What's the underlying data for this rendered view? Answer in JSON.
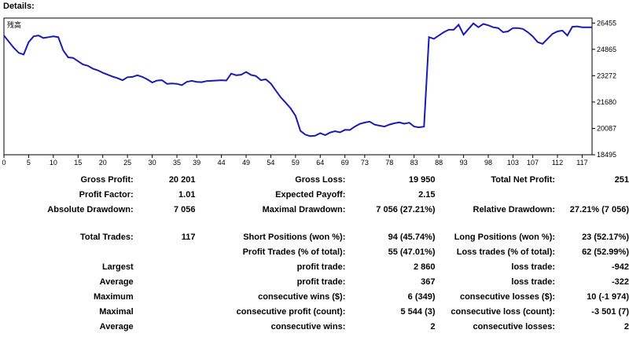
{
  "section_title": "Details:",
  "chart_data": {
    "type": "line",
    "legend_label": "残高",
    "ylim": [
      18495,
      26755
    ],
    "yticks": [
      "26455",
      "24865",
      "23272",
      "21680",
      "20087",
      "18495"
    ],
    "ytick_values": [
      26455,
      24865,
      23272,
      21680,
      20087,
      18495
    ],
    "xticks": [
      "0",
      "5",
      "10",
      "15",
      "20",
      "25",
      "30",
      "35",
      "39",
      "44",
      "49",
      "54",
      "59",
      "64",
      "69",
      "73",
      "78",
      "83",
      "88",
      "93",
      "98",
      "103",
      "107",
      "112",
      "117"
    ],
    "xlim": [
      0,
      119
    ],
    "x": [
      0,
      2,
      3,
      4,
      5,
      6,
      7,
      8,
      9,
      10,
      11,
      12,
      13,
      14,
      15,
      16,
      17,
      18,
      19,
      20,
      21,
      22,
      23,
      24,
      25,
      26,
      27,
      28,
      29,
      30,
      31,
      32,
      33,
      34,
      35,
      36,
      37,
      38,
      39,
      40,
      41,
      42,
      43,
      44,
      45,
      46,
      47,
      48,
      49,
      50,
      51,
      52,
      53,
      54,
      55,
      56,
      57,
      58,
      59,
      60,
      61,
      62,
      63,
      64,
      65,
      66,
      67,
      68,
      69,
      70,
      71,
      72,
      73,
      74,
      75,
      76,
      77,
      78,
      79,
      80,
      81,
      82,
      83,
      84,
      85,
      86,
      87,
      88,
      89,
      90,
      91,
      92,
      93,
      94,
      95,
      96,
      97,
      98,
      99,
      100,
      101,
      102,
      103,
      104,
      105,
      106,
      107,
      108,
      109,
      110,
      111,
      112,
      113,
      114,
      115,
      116,
      117,
      118,
      119
    ],
    "y": [
      25700,
      24950,
      24650,
      24550,
      25300,
      25650,
      25700,
      25550,
      25600,
      25650,
      25600,
      24800,
      24380,
      24350,
      24150,
      23950,
      23870,
      23700,
      23600,
      23450,
      23330,
      23220,
      23120,
      23000,
      23180,
      23200,
      23300,
      23200,
      23050,
      22860,
      22980,
      23000,
      22780,
      22800,
      22780,
      22700,
      22900,
      22960,
      22900,
      22880,
      22950,
      22960,
      22980,
      23000,
      22980,
      23400,
      23300,
      23330,
      23500,
      23320,
      23250,
      23000,
      23050,
      22800,
      22380,
      21970,
      21640,
      21300,
      20850,
      19940,
      19710,
      19620,
      19650,
      19800,
      19680,
      19840,
      19920,
      19850,
      20000,
      19990,
      20200,
      20360,
      20440,
      20500,
      20320,
      20250,
      20200,
      20320,
      20400,
      20450,
      20370,
      20430,
      20200,
      20150,
      20200,
      25600,
      25500,
      25700,
      25900,
      26050,
      26050,
      26350,
      25750,
      26100,
      26430,
      26200,
      26400,
      26320,
      26200,
      26150,
      25900,
      25950,
      26150,
      26150,
      26100,
      25900,
      25650,
      25300,
      25200,
      25500,
      25800,
      25950,
      26000,
      25700,
      26230,
      26250,
      26200,
      26200,
      26200
    ],
    "line_color": "#1a1ab4",
    "grid": false
  },
  "stats": {
    "gross_profit": {
      "label": "Gross Profit:",
      "value": "20 201"
    },
    "gross_loss": {
      "label": "Gross Loss:",
      "value": "19 950"
    },
    "total_net_profit": {
      "label": "Total Net Profit:",
      "value": "251"
    },
    "profit_factor": {
      "label": "Profit Factor:",
      "value": "1.01"
    },
    "expected_payoff": {
      "label": "Expected Payoff:",
      "value": "2.15"
    },
    "absolute_drawdown": {
      "label": "Absolute Drawdown:",
      "value": "7 056"
    },
    "maximal_drawdown": {
      "label": "Maximal Drawdown:",
      "value": "7 056 (27.21%)"
    },
    "relative_drawdown": {
      "label": "Relative Drawdown:",
      "value": "27.21% (7 056)"
    },
    "total_trades": {
      "label": "Total Trades:",
      "value": "117"
    },
    "short_positions": {
      "label": "Short Positions (won %):",
      "value": "94 (45.74%)"
    },
    "long_positions": {
      "label": "Long Positions (won %):",
      "value": "23 (52.17%)"
    },
    "profit_trades": {
      "label": "Profit Trades (% of total):",
      "value": "55 (47.01%)"
    },
    "loss_trades": {
      "label": "Loss trades (% of total):",
      "value": "62 (52.99%)"
    },
    "largest": {
      "label": "Largest",
      "profit_label": "profit trade:",
      "profit_value": "2 860",
      "loss_label": "loss trade:",
      "loss_value": "-942"
    },
    "average": {
      "label": "Average",
      "profit_label": "profit trade:",
      "profit_value": "367",
      "loss_label": "loss trade:",
      "loss_value": "-322"
    },
    "maximum": {
      "label": "Maximum",
      "profit_label": "consecutive wins ($):",
      "profit_value": "6 (349)",
      "loss_label": "consecutive losses ($):",
      "loss_value": "10 (-1 974)"
    },
    "maximal": {
      "label": "Maximal",
      "profit_label": "consecutive profit (count):",
      "profit_value": "5 544 (3)",
      "loss_label": "consecutive loss (count):",
      "loss_value": "-3 501 (7)"
    },
    "average_consecutive": {
      "label": "Average",
      "profit_label": "consecutive wins:",
      "profit_value": "2",
      "loss_label": "consecutive losses:",
      "loss_value": "2"
    }
  }
}
